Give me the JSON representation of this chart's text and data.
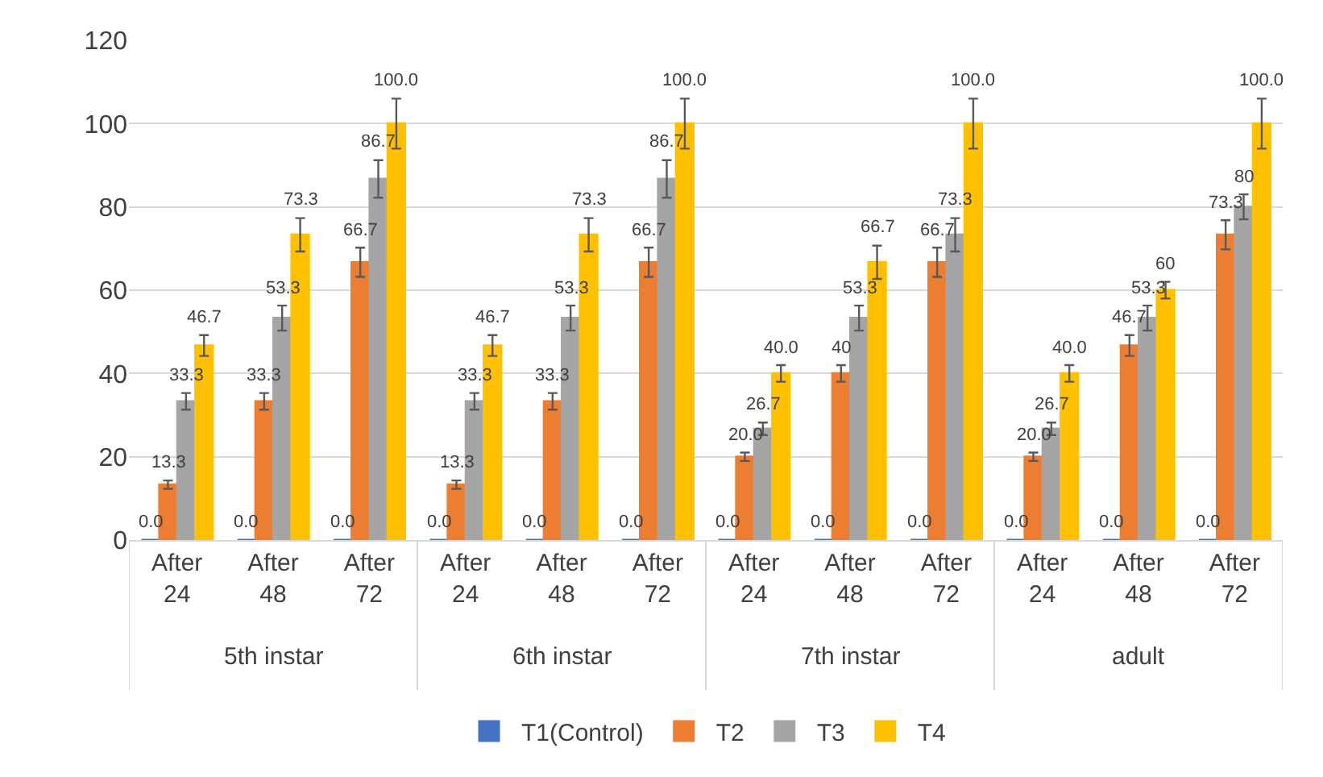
{
  "chart_data": {
    "type": "bar",
    "categories": [
      "After 24",
      "After 48",
      "After 72",
      "After 24",
      "After 48",
      "After 72",
      "After 24",
      "After 48",
      "After 72",
      "After 24",
      "After 48",
      "After 72"
    ],
    "annotations": [
      "5th instar",
      "6th instar",
      "7th instar",
      "adult"
    ],
    "series": [
      {
        "name": "T1(Control)",
        "color": "#4472c4",
        "values": [
          0,
          0,
          0,
          0,
          0,
          0,
          0,
          0,
          0,
          0,
          0,
          0
        ],
        "value_labels": [
          "0.0",
          "0.0",
          "0.0",
          "0.0",
          "0.0",
          "0.0",
          "0.0",
          "0.0",
          "0.0",
          "0.0",
          "0.0",
          "0.0"
        ]
      },
      {
        "name": "T2",
        "color": "#ed7d31",
        "values": [
          13.3,
          33.3,
          66.7,
          13.3,
          33.3,
          66.7,
          20,
          40,
          66.7,
          20,
          46.7,
          73.3
        ],
        "value_labels": [
          "13.3",
          "33.3",
          "66.7",
          "13.3",
          "33.3",
          "66.7",
          "20.0",
          "40",
          "66.7",
          "20.0",
          "46.7",
          "73.3"
        ],
        "errors": [
          1,
          2,
          3.5,
          1,
          2,
          3.5,
          1,
          2,
          3.5,
          1,
          2.5,
          3.5
        ]
      },
      {
        "name": "T3",
        "color": "#a5a5a5",
        "values": [
          33.3,
          53.3,
          86.7,
          33.3,
          53.3,
          86.7,
          26.7,
          53.3,
          73.3,
          26.7,
          53.3,
          80
        ],
        "value_labels": [
          "33.3",
          "53.3",
          "86.7",
          "33.3",
          "53.3",
          "86.7",
          "26.7",
          "53.3",
          "73.3",
          "26.7",
          "53.3",
          "80"
        ],
        "errors": [
          2,
          3,
          4.5,
          2,
          3,
          4.5,
          1.5,
          3,
          4,
          1.5,
          3,
          3
        ]
      },
      {
        "name": "T4",
        "color": "#ffc000",
        "values": [
          46.7,
          73.3,
          100,
          46.7,
          73.3,
          100,
          40,
          66.7,
          100,
          40,
          60,
          100
        ],
        "value_labels": [
          "46.7",
          "73.3",
          "100.0",
          "46.7",
          "73.3",
          "100.0",
          "40.0",
          "66.7",
          "100.0",
          "40.0",
          "60",
          "100.0"
        ],
        "errors": [
          2.5,
          4,
          6,
          2.5,
          4,
          6,
          2,
          4,
          6,
          2,
          2,
          6
        ]
      }
    ],
    "ylim": [
      0,
      120
    ],
    "yticks": [
      0,
      20,
      40,
      60,
      80,
      100,
      120
    ],
    "grid": "y",
    "legend": "bottom"
  }
}
